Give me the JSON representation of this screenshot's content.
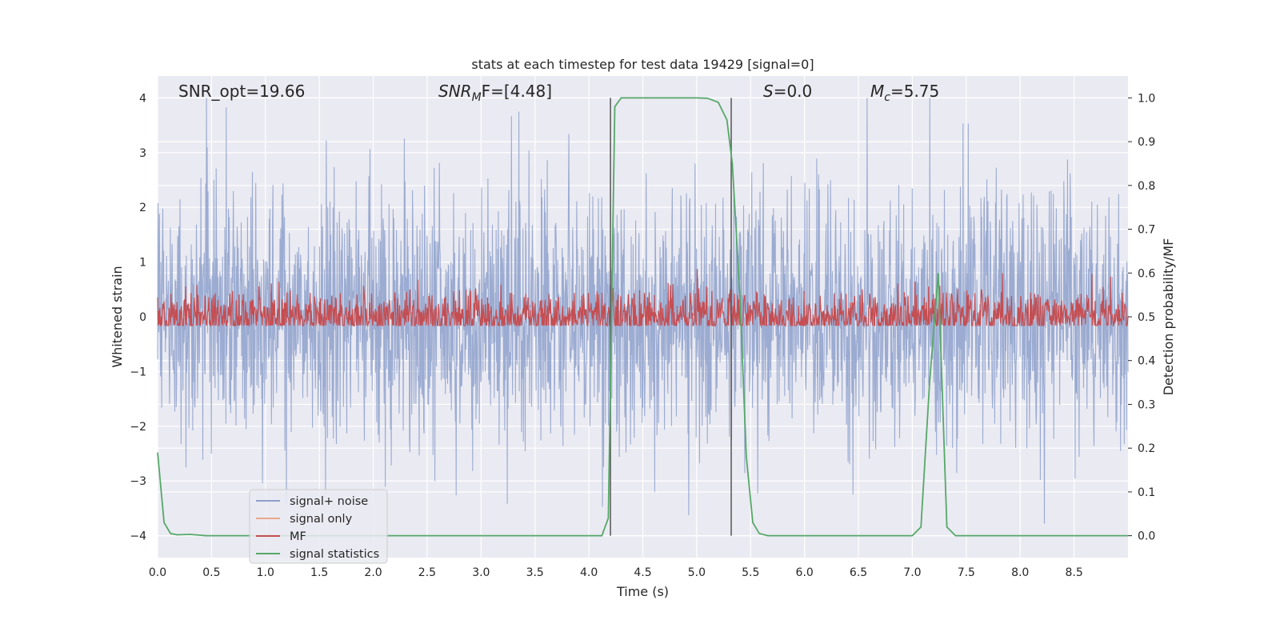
{
  "chart_data": {
    "type": "line",
    "title": "stats at each timestep for test data 19429 [signal=0]",
    "xlabel": "Time (s)",
    "ylabel": "Whitened strain",
    "ylabel_right": "Detection probability/MF",
    "xlim": [
      0.0,
      9.0
    ],
    "ylim": [
      -4.4,
      4.4
    ],
    "ylim_right": [
      -0.05,
      1.05
    ],
    "xticks": [
      "0.0",
      "0.5",
      "1.0",
      "1.5",
      "2.0",
      "2.5",
      "3.0",
      "3.5",
      "4.0",
      "4.5",
      "5.0",
      "5.5",
      "6.0",
      "6.5",
      "7.0",
      "7.5",
      "8.0",
      "8.5"
    ],
    "yticks": [
      "4",
      "3",
      "2",
      "1",
      "0",
      "−1",
      "−2",
      "−3",
      "−4"
    ],
    "yticks_right": [
      "1.0",
      "0.9",
      "0.8",
      "0.7",
      "0.6",
      "0.5",
      "0.4",
      "0.3",
      "0.2",
      "0.1",
      "0.0"
    ],
    "grid": true,
    "annotations": {
      "snr_opt": "SNR_opt=19.66",
      "snr_mf_prefix": "SNR",
      "snr_mf_sub": "M",
      "snr_mf_suffix": "F=[4.48]",
      "s_label": "S",
      "s_value": "=0.0",
      "mc_label": "M",
      "mc_sub": "c",
      "mc_value": "=5.75"
    },
    "vlines": [
      4.2,
      5.32
    ],
    "series": [
      {
        "name": "signal+ noise",
        "color": "#8da0cb",
        "kind": "noise",
        "envelope": {
          "mean": 0.0,
          "std": 1.0,
          "max_abs": 4.0
        }
      },
      {
        "name": "signal only",
        "color": "#e8a98c",
        "kind": "flat",
        "values": [
          0.0
        ]
      },
      {
        "name": "MF",
        "color": "#c44e52",
        "kind": "noise",
        "envelope": {
          "mean": 0.5,
          "std": 0.03,
          "range": [
            0.48,
            0.62
          ],
          "axis": "right"
        }
      },
      {
        "name": "signal statistics",
        "color": "#55a868",
        "kind": "line",
        "axis": "right",
        "x": [
          0.0,
          0.06,
          0.12,
          0.18,
          0.3,
          0.45,
          1.0,
          2.0,
          3.0,
          4.0,
          4.12,
          4.18,
          4.24,
          4.3,
          4.6,
          5.0,
          5.1,
          5.2,
          5.28,
          5.33,
          5.4,
          5.46,
          5.52,
          5.58,
          5.66,
          5.8,
          6.0,
          6.5,
          7.0,
          7.08,
          7.16,
          7.24,
          7.32,
          7.4,
          8.0,
          9.0
        ],
        "values": [
          0.19,
          0.03,
          0.005,
          0.002,
          0.003,
          0.0,
          0.0,
          0.0,
          0.0,
          0.0,
          0.0,
          0.04,
          0.98,
          1.0,
          1.0,
          1.0,
          0.999,
          0.99,
          0.95,
          0.85,
          0.55,
          0.18,
          0.03,
          0.005,
          0.0,
          0.0,
          0.0,
          0.0,
          0.0,
          0.02,
          0.35,
          0.6,
          0.02,
          0.0,
          0.0,
          0.0
        ]
      }
    ]
  }
}
